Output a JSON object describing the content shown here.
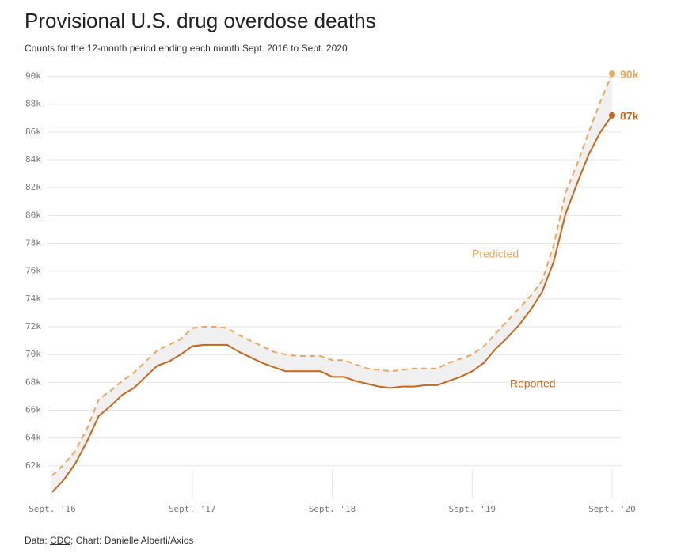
{
  "chart_data": {
    "type": "line",
    "title": "Provisional U.S. drug overdose deaths",
    "subtitle": "Counts for the 12-month period ending each month Sept. 2016 to Sept. 2020",
    "source": {
      "prefix": "Data: ",
      "link": "CDC",
      "suffix": "; Chart: Danielle Alberti/Axios"
    },
    "categories": [
      "Sept. '16",
      null,
      null,
      null,
      null,
      null,
      null,
      null,
      null,
      null,
      null,
      null,
      "Sept. '17",
      null,
      null,
      null,
      null,
      null,
      null,
      null,
      null,
      null,
      null,
      null,
      "Sept. '18",
      null,
      null,
      null,
      null,
      null,
      null,
      null,
      null,
      null,
      null,
      null,
      "Sept. '19",
      null,
      null,
      null,
      null,
      null,
      null,
      null,
      null,
      null,
      null,
      null,
      "Sept. '20"
    ],
    "series": [
      {
        "name": "Predicted",
        "color": "#eda75c",
        "dashed": true,
        "values": [
          61300,
          62100,
          63100,
          64700,
          66800,
          67400,
          68100,
          68700,
          69500,
          70300,
          70700,
          71100,
          71900,
          72000,
          72000,
          71900,
          71400,
          71000,
          70600,
          70200,
          70000,
          69900,
          69900,
          69900,
          69600,
          69600,
          69300,
          69000,
          68900,
          68800,
          68900,
          69000,
          69000,
          69000,
          69400,
          69700,
          70000,
          70600,
          71500,
          72400,
          73300,
          74200,
          75300,
          77900,
          81600,
          83700,
          86000,
          88200,
          90200
        ],
        "value_labels": [
          null,
          null,
          null,
          null,
          null,
          null,
          null,
          null,
          null,
          null,
          null,
          null,
          null,
          null,
          null,
          null,
          null,
          null,
          null,
          null,
          null,
          null,
          null,
          null,
          null,
          null,
          null,
          null,
          null,
          null,
          null,
          null,
          null,
          null,
          null,
          null,
          null,
          null,
          null,
          null,
          null,
          null,
          null,
          null,
          null,
          null,
          null,
          null,
          "90k"
        ]
      },
      {
        "name": "Reported",
        "color": "#c8661a",
        "dashed": false,
        "values": [
          60120,
          61000,
          62200,
          63800,
          65600,
          66300,
          67100,
          67600,
          68400,
          69200,
          69500,
          70000,
          70600,
          70700,
          70700,
          70700,
          70200,
          69800,
          69400,
          69100,
          68800,
          68800,
          68800,
          68800,
          68400,
          68400,
          68100,
          67900,
          67700,
          67600,
          67700,
          67700,
          67800,
          67800,
          68100,
          68400,
          68800,
          69400,
          70400,
          71200,
          72100,
          73200,
          74500,
          76700,
          80100,
          82300,
          84400,
          86000,
          87200
        ],
        "value_labels": [
          null,
          null,
          null,
          null,
          null,
          null,
          null,
          null,
          null,
          null,
          null,
          null,
          null,
          null,
          null,
          null,
          null,
          null,
          null,
          null,
          null,
          null,
          null,
          null,
          null,
          null,
          null,
          null,
          null,
          null,
          null,
          null,
          null,
          null,
          null,
          null,
          null,
          null,
          null,
          null,
          null,
          null,
          null,
          null,
          null,
          null,
          null,
          null,
          "87k"
        ]
      }
    ],
    "ylim": [
      60000,
      91000
    ],
    "yticks": [
      {
        "value": 62000,
        "label": "62k"
      },
      {
        "value": 64000,
        "label": "64k"
      },
      {
        "value": 66000,
        "label": "66k"
      },
      {
        "value": 68000,
        "label": "68k"
      },
      {
        "value": 70000,
        "label": "70k"
      },
      {
        "value": 72000,
        "label": "72k"
      },
      {
        "value": 74000,
        "label": "74k"
      },
      {
        "value": 76000,
        "label": "76k"
      },
      {
        "value": 78000,
        "label": "78k"
      },
      {
        "value": 80000,
        "label": "80k"
      },
      {
        "value": 82000,
        "label": "82k"
      },
      {
        "value": 84000,
        "label": "84k"
      },
      {
        "value": 86000,
        "label": "86k"
      },
      {
        "value": 88000,
        "label": "88k"
      },
      {
        "value": 90000,
        "label": "90k"
      }
    ],
    "grid": true,
    "band_between_series": true
  }
}
